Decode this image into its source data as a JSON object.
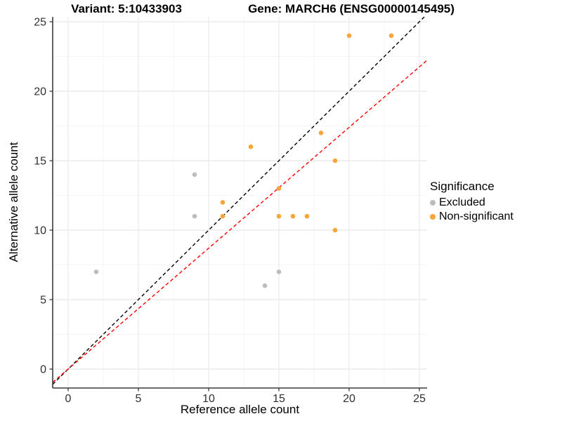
{
  "titles": {
    "variant": "Variant: 5:10433903",
    "gene": "Gene: MARCH6 (ENSG00000145495)"
  },
  "axes": {
    "x_label": "Reference allele count",
    "y_label": "Alternative allele count"
  },
  "legend": {
    "title": "Significance",
    "items": [
      {
        "label": "Excluded",
        "color": "#BDBDBD"
      },
      {
        "label": "Non-significant",
        "color": "#FAA43C"
      }
    ]
  },
  "chart_data": {
    "type": "scatter",
    "title": "Variant: 5:10433903 / Gene: MARCH6 (ENSG00000145495)",
    "xlabel": "Reference allele count",
    "ylabel": "Alternative allele count",
    "xlim": [
      -1.1,
      25.55
    ],
    "ylim": [
      -1.36,
      25.35
    ],
    "x_ticks": [
      0,
      5,
      10,
      15,
      20,
      25
    ],
    "y_ticks": [
      0,
      5,
      10,
      15,
      20,
      25
    ],
    "grid": {
      "major": [
        0,
        5,
        10,
        15,
        20,
        25
      ],
      "minor": [
        2.5,
        7.5,
        12.5,
        17.5,
        22.5
      ],
      "major_color": "#E8E8E8",
      "minor_color": "#F4F4F4"
    },
    "legend_position": "right",
    "series": [
      {
        "name": "Excluded",
        "color": "#BDBDBD",
        "points": [
          [
            2,
            7
          ],
          [
            9,
            14
          ],
          [
            9,
            11
          ],
          [
            14,
            6
          ],
          [
            15,
            7
          ]
        ]
      },
      {
        "name": "Non-significant",
        "color": "#FAA43C",
        "points": [
          [
            11,
            12
          ],
          [
            11,
            11
          ],
          [
            13,
            16
          ],
          [
            15,
            13
          ],
          [
            15,
            11
          ],
          [
            16,
            11
          ],
          [
            17,
            11
          ],
          [
            18,
            17
          ],
          [
            19,
            15
          ],
          [
            19,
            10
          ],
          [
            20,
            24
          ],
          [
            23,
            24
          ]
        ]
      }
    ],
    "reference_lines": [
      {
        "name": "identity-line",
        "slope": 1.0,
        "intercept": 0,
        "color": "#000000",
        "dashed": true
      },
      {
        "name": "expected-ratio-line",
        "slope": 0.87,
        "intercept": 0,
        "color": "#FF0000",
        "dashed": true
      }
    ],
    "point_radius": 3.3,
    "axis_line_color": "#3A3A3A",
    "tick_label_color": "#303030"
  }
}
